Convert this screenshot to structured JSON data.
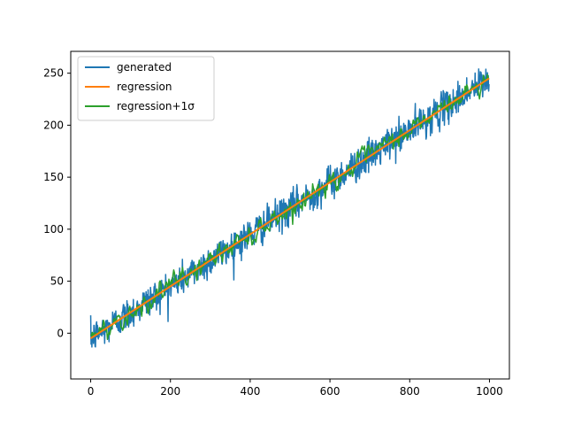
{
  "chart_data": {
    "type": "line",
    "title": "",
    "xlabel": "",
    "ylabel": "",
    "xlim": [
      -50,
      1050
    ],
    "ylim": [
      -44,
      271
    ],
    "x_ticks": [
      0,
      200,
      400,
      600,
      800,
      1000
    ],
    "x_tick_labels": [
      "0",
      "200",
      "400",
      "600",
      "800",
      "1000"
    ],
    "y_ticks": [
      0,
      50,
      100,
      150,
      200,
      250
    ],
    "y_tick_labels": [
      "0",
      "50",
      "100",
      "150",
      "200",
      "250"
    ],
    "grid": false,
    "legend_position": "top-left",
    "series": [
      {
        "name": "generated",
        "color": "#1f77b4",
        "description": "noisy samples around a linear trend",
        "x_range": [
          0,
          999
        ],
        "trend_slope": 0.25,
        "trend_intercept": -5,
        "noise_sigma": 8,
        "points": 1000
      },
      {
        "name": "regression",
        "color": "#ff7f0e",
        "x": [
          0,
          999
        ],
        "y": [
          -5,
          245
        ]
      },
      {
        "name": "regression+1σ",
        "legend_label": "regression+1σ",
        "color": "#2ca02c",
        "description": "regression line plus one standard deviation band, jittery",
        "x_range": [
          0,
          999
        ],
        "trend_slope": 0.25,
        "trend_intercept": -5,
        "offset_sigma": 4
      }
    ]
  }
}
